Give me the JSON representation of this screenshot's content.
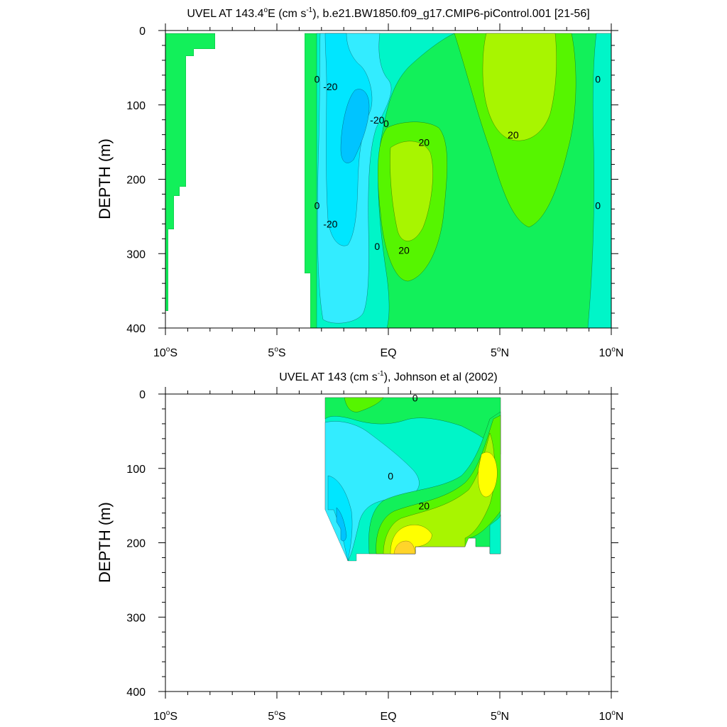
{
  "colors": {
    "c_neg40": "#00a8ff",
    "c_neg30": "#00c4ff",
    "c_neg20": "#00e6ff",
    "c_neg10": "#33ecff",
    "c_0": "#00f5c8",
    "c_10": "#12f05a",
    "c_20": "#56f500",
    "c_30": "#a8f500",
    "c_40": "#ffff00",
    "c_50": "#ffd42a",
    "c_60": "#ffb030"
  },
  "chart_data": [
    {
      "type": "contour",
      "title_main": "UVEL AT 143.4",
      "title_deg": "o",
      "title_mid": "E (cm s",
      "title_exp": "-1",
      "title_rest": "), b.e21.BW1850.f09_g17.CMIP6-piControl.001 [21-56]",
      "ylabel": "DEPTH (m)",
      "xlim": [
        -10,
        10
      ],
      "ylim": [
        400,
        0
      ],
      "x_ticks": [
        {
          "value": -10,
          "num": "10",
          "deg": "o",
          "hemi": "S"
        },
        {
          "value": -5,
          "num": "5",
          "deg": "o",
          "hemi": "S"
        },
        {
          "value": 0,
          "num": "EQ",
          "deg": "",
          "hemi": ""
        },
        {
          "value": 5,
          "num": "5",
          "deg": "o",
          "hemi": "N"
        },
        {
          "value": 10,
          "num": "10",
          "deg": "o",
          "hemi": "N"
        }
      ],
      "y_ticks": [
        0,
        100,
        200,
        300,
        400
      ],
      "contour_labels": [
        {
          "text": "0",
          "lat": -3.2,
          "depth": 70
        },
        {
          "text": "-20",
          "lat": -2.6,
          "depth": 80
        },
        {
          "text": "-20",
          "lat": -0.5,
          "depth": 125
        },
        {
          "text": "0",
          "lat": -0.1,
          "depth": 130
        },
        {
          "text": "20",
          "lat": 1.6,
          "depth": 155
        },
        {
          "text": "20",
          "lat": 5.6,
          "depth": 145
        },
        {
          "text": "0",
          "lat": 9.4,
          "depth": 70
        },
        {
          "text": "0",
          "lat": -3.2,
          "depth": 240
        },
        {
          "text": "-20",
          "lat": -2.6,
          "depth": 265
        },
        {
          "text": "0",
          "lat": -0.5,
          "depth": 295
        },
        {
          "text": "20",
          "lat": 0.7,
          "depth": 300
        },
        {
          "text": "0",
          "lat": 9.4,
          "depth": 240
        }
      ]
    },
    {
      "type": "contour",
      "title_main": "UVEL AT 143 (cm s",
      "title_exp": "-1",
      "title_rest": "), Johnson et al (2002)",
      "ylabel": "DEPTH (m)",
      "xlim": [
        -10,
        10
      ],
      "ylim": [
        400,
        0
      ],
      "x_ticks": [
        {
          "value": -10,
          "num": "10",
          "deg": "o",
          "hemi": "S"
        },
        {
          "value": -5,
          "num": "5",
          "deg": "o",
          "hemi": "S"
        },
        {
          "value": 0,
          "num": "EQ",
          "deg": "",
          "hemi": ""
        },
        {
          "value": 5,
          "num": "5",
          "deg": "o",
          "hemi": "N"
        },
        {
          "value": 10,
          "num": "10",
          "deg": "o",
          "hemi": "N"
        }
      ],
      "y_ticks": [
        0,
        100,
        200,
        300,
        400
      ],
      "contour_labels": [
        {
          "text": "0",
          "lat": 1.2,
          "depth": 10
        },
        {
          "text": "0",
          "lat": 0.1,
          "depth": 115
        },
        {
          "text": "20",
          "lat": 1.6,
          "depth": 155
        }
      ]
    }
  ]
}
